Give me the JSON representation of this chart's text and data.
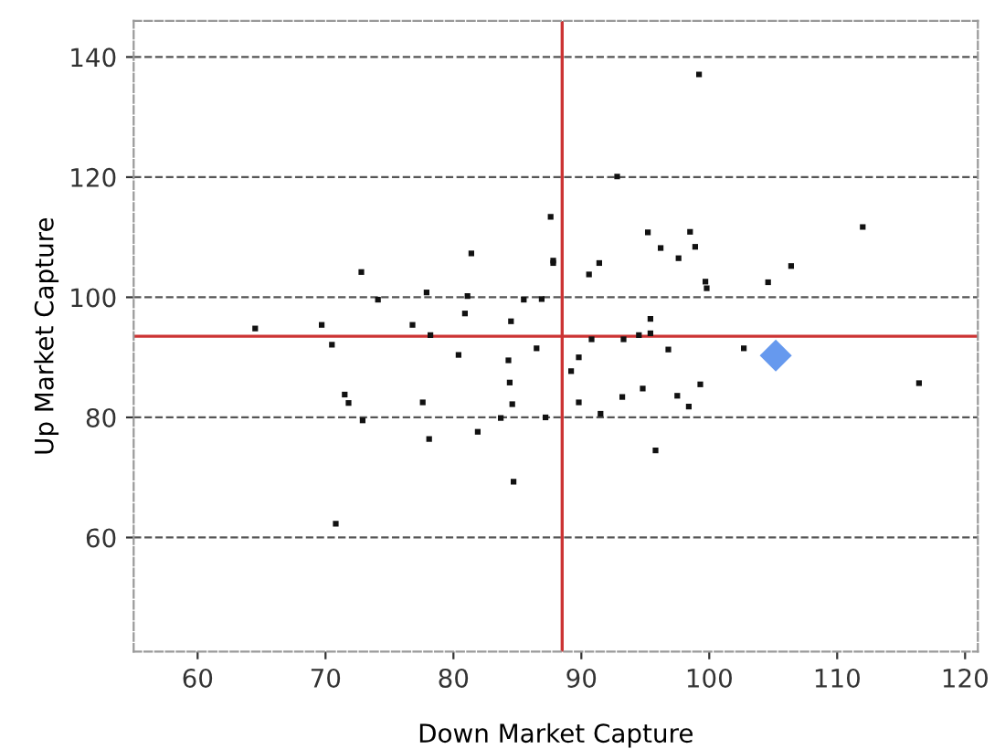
{
  "chart_data": {
    "type": "scatter",
    "xlabel": "Down Market Capture",
    "ylabel": "Up Market Capture",
    "xlim": [
      55,
      121
    ],
    "ylim": [
      41,
      146
    ],
    "xticks": [
      60,
      70,
      80,
      90,
      100,
      110,
      120
    ],
    "yticks": [
      60,
      80,
      100,
      120,
      140
    ],
    "grid": "y",
    "legend": false,
    "series": [
      {
        "color": "#111111",
        "marker": "square",
        "x": [
          64.5,
          69.7,
          70.5,
          72.8,
          74.1,
          76.8,
          77.9,
          78.2,
          80.9,
          81.4,
          81.1,
          84.5,
          85.5,
          80.4,
          84.3,
          86.5,
          71.5,
          71.8,
          72.9,
          77.6,
          78.1,
          81.9,
          83.7,
          84.4,
          84.6,
          84.7,
          70.8,
          99.2,
          92.8,
          87.6,
          87.8,
          87.8,
          90.6,
          91.4,
          95.2,
          96.2,
          97.6,
          98.5,
          98.9,
          99.7,
          99.8,
          104.6,
          106.4,
          112.0,
          86.9,
          95.4,
          95.4,
          94.5,
          93.3,
          90.8,
          89.8,
          89.2,
          89.8,
          87.2,
          91.5,
          93.2,
          94.8,
          95.8,
          96.8,
          97.5,
          98.4,
          99.3,
          102.7,
          116.4
        ],
        "values": [
          94.8,
          95.4,
          92.1,
          104.2,
          99.6,
          95.4,
          100.8,
          93.7,
          97.3,
          107.3,
          100.2,
          96.0,
          99.6,
          90.4,
          89.5,
          91.5,
          83.8,
          82.4,
          79.5,
          82.5,
          76.4,
          77.6,
          79.9,
          85.8,
          82.2,
          69.3,
          62.3,
          137.1,
          120.1,
          113.4,
          106.1,
          105.7,
          103.8,
          105.7,
          110.8,
          108.2,
          106.5,
          110.9,
          108.4,
          102.6,
          101.5,
          102.5,
          105.2,
          111.7,
          99.7,
          96.4,
          94.0,
          93.7,
          93.0,
          93.0,
          90.0,
          87.7,
          82.5,
          80.0,
          80.6,
          83.4,
          84.8,
          74.5,
          91.3,
          83.6,
          81.8,
          85.5,
          91.5,
          85.7
        ]
      },
      {
        "color": "#6699ee",
        "marker": "diamond",
        "x": [
          105.2
        ],
        "values": [
          90.3
        ]
      }
    ],
    "ref_lines": [
      {
        "axis": "x",
        "value": 88.5,
        "color": "#cc3333"
      },
      {
        "axis": "y",
        "value": 93.5,
        "color": "#cc3333"
      }
    ]
  }
}
